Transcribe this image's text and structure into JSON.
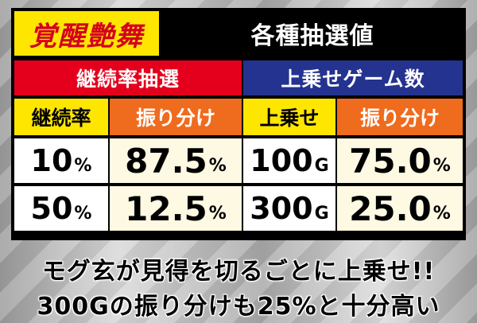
{
  "header": {
    "logo": "覚醒艶舞",
    "title": "各種抽選値"
  },
  "sections": [
    {
      "label": "継続率抽選",
      "color": "#e4001d"
    },
    {
      "label": "上乗せゲーム数",
      "color": "#24338f"
    }
  ],
  "columns": [
    "継続率",
    "振り分け",
    "上乗せ",
    "振り分け"
  ],
  "rows": [
    {
      "rate": "10",
      "rate_unit": "%",
      "rate_share": "87.5",
      "rate_share_unit": "%",
      "games": "100",
      "games_unit": "G",
      "games_share": "75.0",
      "games_share_unit": "%"
    },
    {
      "rate": "50",
      "rate_unit": "%",
      "rate_share": "12.5",
      "rate_share_unit": "%",
      "games": "300",
      "games_unit": "G",
      "games_share": "25.0",
      "games_share_unit": "%"
    }
  ],
  "caption": {
    "line1": "モグ玄が見得を切るごとに上乗せ!!",
    "line2": "300Gの振り分けも25%と十分高い"
  }
}
